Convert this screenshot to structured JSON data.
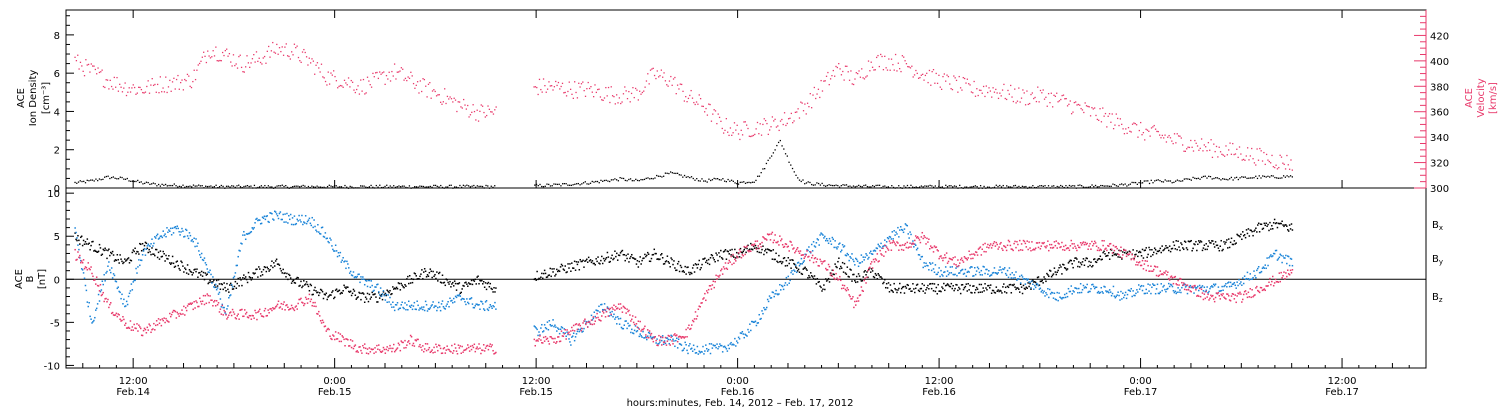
{
  "chart_data": [
    {
      "type": "scatter",
      "panel": "top",
      "ylabel_left": [
        "ACE",
        "Ion Density",
        "[cm⁻³]"
      ],
      "ylabel_right": [
        "ACE",
        "Velocity",
        "[km/s]"
      ],
      "ylim_left": [
        0,
        9.3
      ],
      "yticks_left": [
        0,
        2,
        4,
        6,
        8
      ],
      "ylim_right": [
        300,
        440
      ],
      "yticks_right": [
        300,
        320,
        340,
        360,
        380,
        400,
        420
      ],
      "colors": {
        "density": "#000000",
        "velocity": "#e8396b"
      },
      "series": [
        {
          "name": "Ion Density",
          "axis": "left",
          "x_hours": [
            8.5,
            9.5,
            10.5,
            11.5,
            12.5,
            13.5,
            15,
            17,
            19,
            21,
            23,
            25,
            27,
            29,
            31,
            33.5,
            36,
            37.5,
            39,
            40,
            41,
            42,
            43,
            44,
            45,
            46,
            47,
            48,
            49,
            49.5,
            50,
            50.5,
            51,
            51.5,
            52,
            53,
            54,
            56,
            58,
            60,
            62,
            64,
            66,
            68,
            70,
            71,
            72,
            73,
            74,
            75,
            76,
            77,
            78,
            79,
            80,
            81
          ],
          "values": [
            0.3,
            0.4,
            0.6,
            0.5,
            0.3,
            0.2,
            0.15,
            0.1,
            0.1,
            0.1,
            0.1,
            0.1,
            0.1,
            0.1,
            0.1,
            0.1,
            0.15,
            0.2,
            0.3,
            0.4,
            0.5,
            0.4,
            0.6,
            0.8,
            0.6,
            0.4,
            0.5,
            0.3,
            0.4,
            1.0,
            1.8,
            2.5,
            1.5,
            0.6,
            0.3,
            0.2,
            0.15,
            0.1,
            0.1,
            0.1,
            0.1,
            0.1,
            0.1,
            0.1,
            0.15,
            0.2,
            0.3,
            0.4,
            0.35,
            0.5,
            0.6,
            0.5,
            0.55,
            0.6,
            0.6,
            0.65
          ]
        },
        {
          "name": "Velocity",
          "axis": "right",
          "x_hours": [
            8.5,
            9.5,
            10.5,
            11.5,
            12.5,
            13.5,
            14.5,
            15.5,
            16.5,
            17.5,
            18.5,
            19.5,
            20.5,
            21.5,
            22.5,
            23.5,
            24.5,
            25.5,
            26.5,
            27.5,
            28.5,
            29.5,
            30.5,
            31.5,
            32.5,
            33.5,
            36,
            37,
            38,
            39,
            40,
            41,
            42,
            43,
            44,
            45,
            46,
            47,
            48,
            49,
            50,
            51,
            52,
            53,
            54,
            55,
            56,
            57,
            58,
            59,
            60,
            61,
            62,
            63,
            64,
            65,
            66,
            67,
            68,
            69,
            70,
            71,
            72,
            73,
            74,
            75,
            76,
            77,
            78,
            79,
            80,
            81
          ],
          "values": [
            400,
            392,
            385,
            380,
            378,
            382,
            383,
            386,
            410,
            405,
            398,
            402,
            410,
            408,
            400,
            388,
            385,
            380,
            385,
            392,
            385,
            378,
            372,
            365,
            360,
            360,
            380,
            380,
            378,
            378,
            375,
            373,
            375,
            390,
            385,
            372,
            365,
            350,
            345,
            348,
            350,
            355,
            365,
            380,
            395,
            385,
            400,
            400,
            398,
            390,
            385,
            382,
            378,
            378,
            375,
            372,
            373,
            370,
            365,
            360,
            355,
            350,
            345,
            342,
            338,
            335,
            332,
            330,
            328,
            325,
            322,
            320
          ]
        }
      ]
    },
    {
      "type": "scatter",
      "panel": "bottom",
      "ylabel_left": [
        "ACE",
        "B",
        "[nT]"
      ],
      "ylim": [
        -10.3,
        10.6
      ],
      "yticks": [
        -10,
        -5,
        0,
        5,
        10
      ],
      "zero_line": true,
      "colors": {
        "Bx": "#000000",
        "By": "#1a84d8",
        "Bz": "#e8396b"
      },
      "series": [
        {
          "name": "Bx",
          "x_hours": [
            8.5,
            9.5,
            10.5,
            11.5,
            12.5,
            13.5,
            14.5,
            15.5,
            16.5,
            17.5,
            18.5,
            19.5,
            20.5,
            21.5,
            22.5,
            23.5,
            24.5,
            25.5,
            26.5,
            27.5,
            28.5,
            29.5,
            30.5,
            31.5,
            32.5,
            33.5,
            36,
            37,
            38,
            39,
            40,
            41,
            42,
            43,
            44,
            45,
            46,
            47,
            48,
            49,
            50,
            51,
            52,
            53,
            54,
            55,
            56,
            57,
            58,
            59,
            60,
            61,
            62,
            63,
            64,
            65,
            66,
            67,
            68,
            69,
            70,
            71,
            72,
            73,
            74,
            75,
            76,
            77,
            78,
            79,
            80,
            81
          ],
          "values": [
            5,
            4,
            3,
            2,
            4,
            3,
            2,
            1,
            0,
            -1,
            0,
            1,
            2,
            0,
            -1,
            -2,
            -1,
            -2,
            -2,
            -1,
            0,
            1,
            0,
            -1,
            0,
            -1,
            0.5,
            1,
            1.5,
            2,
            2.5,
            3,
            2,
            3,
            2,
            1,
            2,
            3,
            3,
            4,
            3,
            2,
            1,
            -1,
            2,
            0,
            1,
            -1,
            -1,
            -1,
            -1,
            -1,
            -1,
            -1,
            -1,
            -1,
            0,
            1,
            2,
            2,
            3,
            3,
            3,
            3.5,
            4,
            4,
            4,
            4,
            5,
            6,
            6.5,
            6
          ]
        },
        {
          "name": "By",
          "x_hours": [
            8.5,
            9.5,
            10.5,
            11.5,
            12.5,
            13.5,
            14.5,
            15.5,
            16.5,
            17.5,
            18.5,
            19.5,
            20.5,
            21.5,
            22.5,
            23.5,
            24.5,
            25.5,
            26.5,
            27.5,
            28.5,
            29.5,
            30.5,
            31.5,
            32.5,
            33.5,
            36,
            37,
            38,
            39,
            40,
            41,
            42,
            43,
            44,
            45,
            46,
            47,
            48,
            49,
            50,
            51,
            52,
            53,
            54,
            55,
            56,
            57,
            58,
            59,
            60,
            61,
            62,
            63,
            64,
            65,
            66,
            67,
            68,
            69,
            70,
            71,
            72,
            73,
            74,
            75,
            76,
            77,
            78,
            79,
            80,
            81
          ],
          "values": [
            6,
            -5,
            2,
            -3,
            3,
            5,
            6,
            5,
            1,
            -4,
            5,
            7,
            7.5,
            7,
            7,
            5,
            2,
            0,
            -1,
            -3,
            -3,
            -3,
            -3,
            -2,
            -3,
            -3,
            -6,
            -5,
            -7,
            -5,
            -3,
            -5,
            -6,
            -7,
            -7,
            -8,
            -8,
            -8,
            -7,
            -5,
            -2,
            0,
            3,
            5,
            4,
            2,
            3,
            5,
            6,
            2,
            1,
            1,
            1,
            1,
            1,
            0,
            -1,
            -2,
            -1,
            -1,
            -1,
            -2,
            -1,
            -1,
            -1,
            -1,
            -1,
            -1,
            0,
            1,
            3,
            2
          ]
        },
        {
          "name": "Bz",
          "x_hours": [
            8.5,
            9.5,
            10.5,
            11.5,
            12.5,
            13.5,
            14.5,
            15.5,
            16.5,
            17.5,
            18.5,
            19.5,
            20.5,
            21.5,
            22.5,
            23.5,
            24.5,
            25.5,
            26.5,
            27.5,
            28.5,
            29.5,
            30.5,
            31.5,
            32.5,
            33.5,
            36,
            37,
            38,
            39,
            40,
            41,
            42,
            43,
            44,
            45,
            46,
            47,
            48,
            49,
            50,
            51,
            52,
            53,
            54,
            55,
            56,
            57,
            58,
            59,
            60,
            61,
            62,
            63,
            64,
            65,
            66,
            67,
            68,
            69,
            70,
            71,
            72,
            73,
            74,
            75,
            76,
            77,
            78,
            79,
            80,
            81
          ],
          "values": [
            3,
            1,
            -3,
            -5,
            -6,
            -5,
            -4,
            -3,
            -2,
            -4,
            -4,
            -4,
            -3,
            -3,
            -2,
            -6,
            -7,
            -8,
            -8,
            -8,
            -7,
            -8,
            -8,
            -8,
            -8,
            -8,
            -7,
            -7,
            -6,
            -5,
            -4,
            -3,
            -5,
            -7,
            -7,
            -6,
            -2,
            1,
            3,
            4,
            5,
            4,
            3,
            2,
            0,
            -3,
            2,
            4,
            4,
            5,
            3,
            2,
            3,
            4,
            4,
            4,
            4,
            4,
            4,
            4,
            4,
            3,
            2,
            1,
            0,
            -1,
            -2,
            -2,
            -2,
            -1,
            0,
            1
          ]
        }
      ],
      "legend": [
        "Bx",
        "By",
        "Bz"
      ]
    }
  ],
  "x_axis": {
    "xlim_hours": [
      8,
      89
    ],
    "major_ticks": [
      {
        "hour": 12,
        "time": "12:00",
        "date": "Feb.14"
      },
      {
        "hour": 24,
        "time": "0:00",
        "date": "Feb.15"
      },
      {
        "hour": 36,
        "time": "12:00",
        "date": "Feb.15"
      },
      {
        "hour": 48,
        "time": "0:00",
        "date": "Feb.16"
      },
      {
        "hour": 60,
        "time": "12:00",
        "date": "Feb.16"
      },
      {
        "hour": 72,
        "time": "0:00",
        "date": "Feb.17"
      },
      {
        "hour": 84,
        "time": "12:00",
        "date": "Feb.17"
      }
    ],
    "xlabel": "hours:minutes, Feb. 14, 2012 – Feb. 17, 2012"
  }
}
